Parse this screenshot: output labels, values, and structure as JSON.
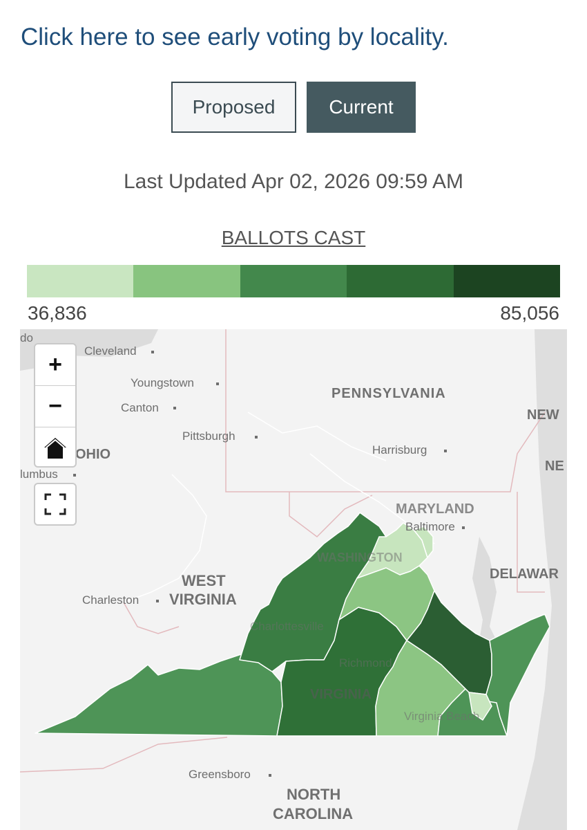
{
  "link_text": "Click here to see early voting by locality.",
  "toggle": {
    "proposed_label": "Proposed",
    "current_label": "Current",
    "selected": "Current"
  },
  "last_updated": "Last Updated Apr 02, 2026 09:59 AM",
  "legend": {
    "title": "BALLOTS CAST",
    "min_label": "36,836",
    "max_label": "85,056",
    "colors": [
      "#c9e6c1",
      "#88c47f",
      "#43884c",
      "#2d6a34",
      "#1c4421"
    ]
  },
  "map_controls": {
    "zoom_in": "+",
    "zoom_out": "−",
    "home_icon": "home-icon",
    "fullscreen_icon": "fullscreen-icon"
  },
  "map_labels": {
    "states": [
      "PENNSYLVANIA",
      "OHIO",
      "WEST",
      "VIRGINIA",
      "MARYLAND",
      "DELAWAR",
      "NEW",
      "NE",
      "NORTH",
      "CAROLINA",
      "VIRGINIA",
      "WASHINGTON"
    ],
    "cities": [
      "Cleveland",
      "Youngstown",
      "Canton",
      "Pittsburgh",
      "Harrisburg",
      "Baltimore",
      "Charleston",
      "Charlottesville",
      "Richmond",
      "Virginia Beach",
      "Greensboro",
      "lumbus",
      "do"
    ]
  }
}
